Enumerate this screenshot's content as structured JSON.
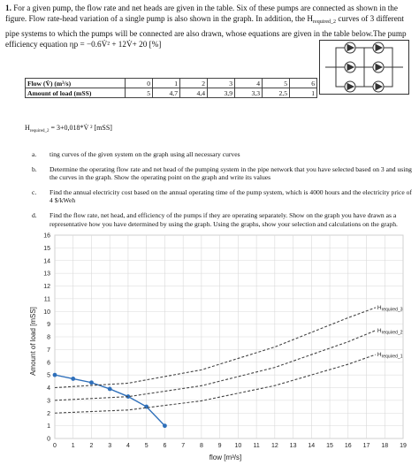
{
  "intro": {
    "number": "1.",
    "text_a": "For a given pump, the flow rate and net heads are given in the table. Six of these pumps are connected as shown in the figure. Flow rate-head variation of a single pump is also shown in the graph. In addition, the",
    "hreq_main": "H",
    "hreq_sub": "required_2",
    "text_b": "curves of 3 different pipe systems to which the pumps will be connected are also drawn, whose equations are given in the table below.The pump efficiency equation",
    "eff_eq": "ηp = −0.6V̇² + 12V̇+ 20  [%]"
  },
  "table": {
    "row1_label": "Flow (V̇) (m³/s)",
    "row2_label": "Amount of load (mSS)",
    "flow": [
      "0",
      "1",
      "2",
      "3",
      "4",
      "5",
      "6"
    ],
    "load": [
      "5",
      "4,7",
      "4,4",
      "3,9",
      "3,3",
      "2,5",
      "1"
    ]
  },
  "hreq_eq": {
    "main": "H",
    "sub": "required_2",
    "rest": " = 3+0,018*V̇ ²  [mSS]"
  },
  "items": [
    {
      "label": "a.",
      "text": "ting curves of the given system on the graph using all necessary curves"
    },
    {
      "label": "b.",
      "text": "Determine the operating flow rate and net head of the pumping system in the pipe network that you have selected based on 3 and using the curves in the graph. Show the operating point on the graph and write its values"
    },
    {
      "label": "c.",
      "text": "Find the annual electricity cost based on the annual operating time of the pump system, which is 4000 hours and the electricity price of 4 $/kWeh"
    },
    {
      "label": "d.",
      "text": "Find the flow rate, net head, and efficiency of the pumps if they are operating separately. Show on the graph you have drawn as a representative how you have determined by using the graph. Using the graphs, show your selection and calculations on the graph."
    }
  ],
  "chart_data": {
    "type": "line",
    "xlabel": "flow [m³/s]",
    "ylabel": "Amount of load [mSS]",
    "xlim": [
      0,
      19
    ],
    "ylim": [
      0,
      16
    ],
    "xticks": [
      "0",
      "1",
      "2",
      "3",
      "4",
      "5",
      "6",
      "7",
      "8",
      "9",
      "10",
      "11",
      "12",
      "13",
      "14",
      "15",
      "16",
      "17",
      "18",
      "19"
    ],
    "yticks": [
      "0",
      "1",
      "2",
      "3",
      "4",
      "5",
      "6",
      "7",
      "8",
      "9",
      "10",
      "11",
      "12",
      "13",
      "14",
      "15",
      "16"
    ],
    "grid": true,
    "series": [
      {
        "name": "",
        "style": "solid-markers",
        "color": "#2e6fba",
        "x": [
          0,
          1,
          2,
          3,
          4,
          5,
          6
        ],
        "y": [
          5,
          4.7,
          4.4,
          3.9,
          3.3,
          2.5,
          1
        ]
      },
      {
        "name": "Hrequired_3",
        "style": "dashed",
        "color": "#444444",
        "x": [
          0,
          4,
          8,
          12,
          16,
          17.5
        ],
        "y": [
          4,
          4.35,
          5.4,
          7.2,
          9.5,
          10.3
        ]
      },
      {
        "name": "Hrequired_2",
        "style": "dashed",
        "color": "#444444",
        "x": [
          0,
          4,
          8,
          12,
          16,
          17.5
        ],
        "y": [
          3,
          3.29,
          4.15,
          5.59,
          7.61,
          8.5
        ]
      },
      {
        "name": "Hrequired_1",
        "style": "dashed",
        "color": "#444444",
        "x": [
          0,
          4,
          8,
          12,
          16,
          17.5
        ],
        "y": [
          2,
          2.24,
          2.96,
          4.16,
          5.84,
          6.6
        ]
      }
    ]
  }
}
